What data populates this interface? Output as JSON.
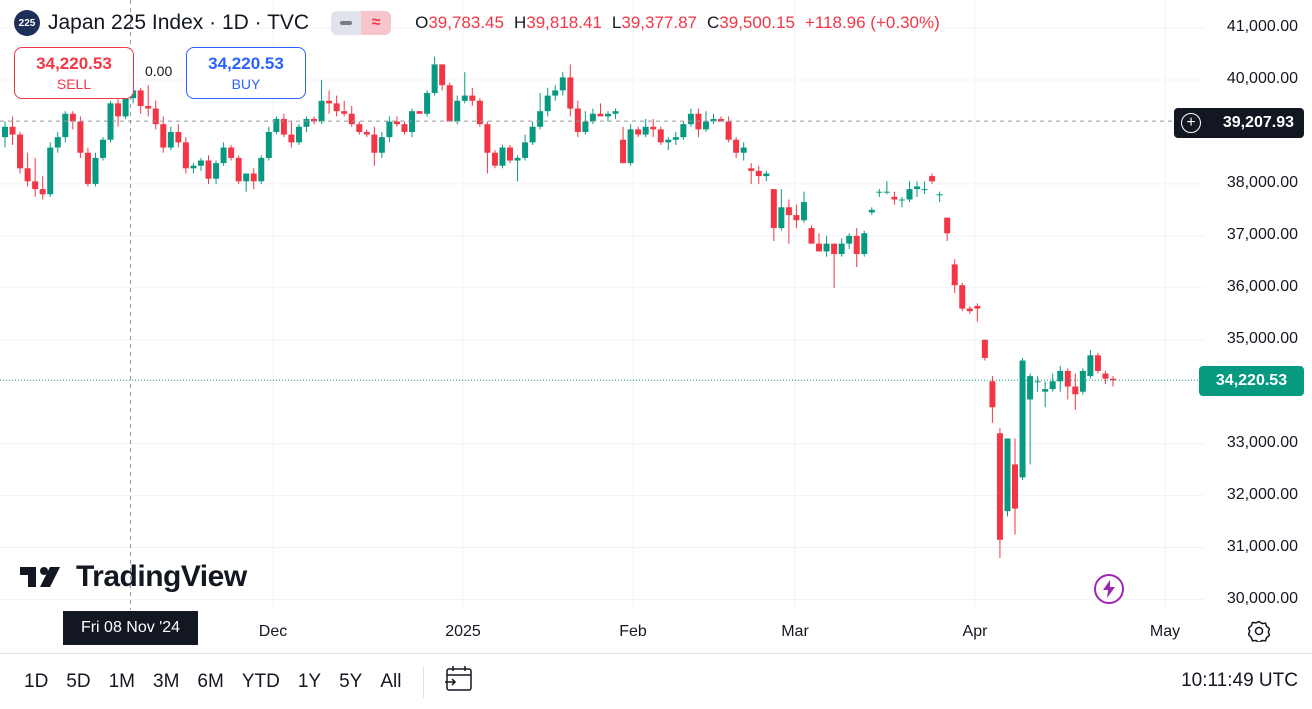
{
  "header": {
    "symbol_badge": "225",
    "title": "Japan 225 Index · 1D · TVC",
    "ohlc": {
      "open_label": "O",
      "open": "39,783.45",
      "high_label": "H",
      "high": "39,818.41",
      "low_label": "L",
      "low": "39,377.87",
      "close_label": "C",
      "close": "39,500.15",
      "change": "+118.96 (+0.30%)"
    },
    "toggle_icon_right": "≈"
  },
  "trade": {
    "sell_price": "34,220.53",
    "sell_label": "SELL",
    "spread": "0.00",
    "buy_price": "34,220.53",
    "buy_label": "BUY"
  },
  "brand": "TradingView",
  "price_axis": {
    "ticks": [
      "41,000.00",
      "40,000.00",
      "38,000.00",
      "37,000.00",
      "36,000.00",
      "35,000.00",
      "33,000.00",
      "32,000.00",
      "31,000.00",
      "30,000.00"
    ],
    "crosshair_price": "39,207.93",
    "last_price": "34,220.53"
  },
  "time_axis": {
    "ticks": [
      "Dec",
      "2025",
      "Feb",
      "Mar",
      "Apr",
      "May"
    ],
    "crosshair_date": "Fri 08 Nov '24"
  },
  "toolbar": {
    "timeframes": [
      "1D",
      "5D",
      "1M",
      "3M",
      "6M",
      "YTD",
      "1Y",
      "5Y",
      "All"
    ],
    "clock": "10:11:49 UTC"
  },
  "colors": {
    "up": "#089981",
    "down": "#f23645",
    "accent_buy": "#2962ff",
    "crosshair": "#131722"
  },
  "chart_data": {
    "type": "candlestick",
    "symbol": "Japan 225 Index",
    "interval": "1D",
    "ylim": [
      30000,
      41000
    ],
    "x_ticks": [
      "Dec",
      "2025",
      "Feb",
      "Mar",
      "Apr",
      "May"
    ],
    "crosshair": {
      "date": "Fri 08 Nov '24",
      "price": 39207.93
    },
    "last_price": 34220.53,
    "candles": [
      [
        38900,
        39200,
        38700,
        39100
      ],
      [
        39100,
        39300,
        38750,
        38950
      ],
      [
        38950,
        39000,
        38200,
        38300
      ],
      [
        38300,
        38600,
        37950,
        38050
      ],
      [
        38050,
        38500,
        37750,
        37900
      ],
      [
        37900,
        38150,
        37700,
        37800
      ],
      [
        37800,
        38800,
        37750,
        38700
      ],
      [
        38700,
        39000,
        38600,
        38900
      ],
      [
        38900,
        39400,
        38800,
        39350
      ],
      [
        39350,
        39400,
        39050,
        39200
      ],
      [
        39200,
        39300,
        38500,
        38600
      ],
      [
        38600,
        38700,
        37950,
        38000
      ],
      [
        38000,
        38600,
        37950,
        38500
      ],
      [
        38500,
        38900,
        38450,
        38850
      ],
      [
        38850,
        39600,
        38800,
        39550
      ],
      [
        39550,
        39800,
        39100,
        39300
      ],
      [
        39300,
        39700,
        39250,
        39650
      ],
      [
        39650,
        39950,
        39550,
        39800
      ],
      [
        39800,
        39850,
        39350,
        39500
      ],
      [
        39500,
        39900,
        39300,
        39450
      ],
      [
        39450,
        39600,
        39050,
        39150
      ],
      [
        39150,
        39300,
        38600,
        38700
      ],
      [
        38700,
        39100,
        38650,
        39000
      ],
      [
        39000,
        39150,
        38700,
        38800
      ],
      [
        38800,
        38900,
        38200,
        38300
      ],
      [
        38300,
        38400,
        38200,
        38350
      ],
      [
        38350,
        38500,
        38250,
        38450
      ],
      [
        38450,
        38550,
        38000,
        38100
      ],
      [
        38100,
        38450,
        38000,
        38400
      ],
      [
        38400,
        38800,
        38350,
        38700
      ],
      [
        38700,
        38750,
        38450,
        38500
      ],
      [
        38500,
        38550,
        38000,
        38050
      ],
      [
        38050,
        38200,
        37850,
        38200
      ],
      [
        38200,
        38300,
        37900,
        38050
      ],
      [
        38050,
        38550,
        38000,
        38500
      ],
      [
        38500,
        39100,
        38450,
        39000
      ],
      [
        39000,
        39300,
        38950,
        39250
      ],
      [
        39250,
        39350,
        38900,
        38950
      ],
      [
        38950,
        39200,
        38700,
        38800
      ],
      [
        38800,
        39150,
        38750,
        39100
      ],
      [
        39100,
        39300,
        39000,
        39250
      ],
      [
        39250,
        39300,
        39150,
        39200
      ],
      [
        39200,
        40000,
        39150,
        39600
      ],
      [
        39600,
        39800,
        39350,
        39550
      ],
      [
        39550,
        39700,
        39300,
        39400
      ],
      [
        39400,
        39600,
        39300,
        39350
      ],
      [
        39350,
        39500,
        39100,
        39150
      ],
      [
        39150,
        39200,
        38950,
        39000
      ],
      [
        39000,
        39050,
        38900,
        38950
      ],
      [
        38950,
        39100,
        38350,
        38600
      ],
      [
        38600,
        39000,
        38500,
        38900
      ],
      [
        38900,
        39300,
        38800,
        39200
      ],
      [
        39200,
        39300,
        39100,
        39150
      ],
      [
        39150,
        39200,
        38950,
        39000
      ],
      [
        39000,
        39450,
        38900,
        39400
      ],
      [
        39400,
        39400,
        39350,
        39350
      ],
      [
        39350,
        39800,
        39300,
        39750
      ],
      [
        39750,
        40450,
        39700,
        40300
      ],
      [
        40300,
        40300,
        39800,
        39900
      ],
      [
        39900,
        39950,
        39200,
        39200
      ],
      [
        39200,
        39700,
        39150,
        39600
      ],
      [
        39600,
        40150,
        39550,
        39700
      ],
      [
        39700,
        39850,
        39500,
        39600
      ],
      [
        39600,
        39650,
        39100,
        39150
      ],
      [
        39150,
        39200,
        38200,
        38600
      ],
      [
        38600,
        38650,
        38300,
        38350
      ],
      [
        38350,
        38750,
        38300,
        38700
      ],
      [
        38700,
        38750,
        38400,
        38450
      ],
      [
        38450,
        38550,
        38050,
        38500
      ],
      [
        38500,
        38950,
        38450,
        38800
      ],
      [
        38800,
        39200,
        38750,
        39100
      ],
      [
        39100,
        39750,
        39050,
        39400
      ],
      [
        39400,
        39850,
        39300,
        39700
      ],
      [
        39700,
        39900,
        39600,
        39800
      ],
      [
        39800,
        40150,
        39700,
        40050
      ],
      [
        40050,
        40300,
        39300,
        39450
      ],
      [
        39450,
        39600,
        38900,
        39000
      ],
      [
        39000,
        39400,
        38950,
        39200
      ],
      [
        39200,
        39450,
        39150,
        39350
      ],
      [
        39350,
        39550,
        39300,
        39300
      ],
      [
        39300,
        39400,
        39200,
        39350
      ],
      [
        39350,
        39450,
        39250,
        39400
      ],
      [
        38850,
        39100,
        38400,
        38400
      ],
      [
        38400,
        39150,
        38350,
        39050
      ],
      [
        39050,
        39100,
        38900,
        38950
      ],
      [
        38950,
        39250,
        38900,
        39100
      ],
      [
        39100,
        39250,
        38900,
        39050
      ],
      [
        39050,
        39100,
        38750,
        38800
      ],
      [
        38800,
        38900,
        38650,
        38850
      ],
      [
        38850,
        39000,
        38750,
        38900
      ],
      [
        38900,
        39200,
        38850,
        39150
      ],
      [
        39150,
        39450,
        39100,
        39350
      ],
      [
        39350,
        39450,
        38900,
        39050
      ],
      [
        39050,
        39400,
        39000,
        39200
      ],
      [
        39200,
        39350,
        39150,
        39250
      ],
      [
        39250,
        39300,
        39200,
        39200
      ],
      [
        39200,
        39300,
        38800,
        38850
      ],
      [
        38850,
        38900,
        38500,
        38600
      ],
      [
        38600,
        38800,
        38450,
        38700
      ],
      [
        38300,
        38400,
        38000,
        38250
      ],
      [
        38250,
        38350,
        38000,
        38150
      ],
      [
        38150,
        38250,
        38050,
        38200
      ],
      [
        37900,
        37900,
        36900,
        37150
      ],
      [
        37150,
        37900,
        37100,
        37550
      ],
      [
        37550,
        37700,
        36850,
        37400
      ],
      [
        37400,
        37600,
        37150,
        37300
      ],
      [
        37300,
        37850,
        37250,
        37650
      ],
      [
        37150,
        37200,
        36850,
        36850
      ],
      [
        36850,
        37050,
        36700,
        36700
      ],
      [
        36700,
        37000,
        36600,
        36850
      ],
      [
        36850,
        36850,
        36000,
        36650
      ],
      [
        36650,
        36950,
        36600,
        36850
      ],
      [
        36850,
        37050,
        36750,
        37000
      ],
      [
        37000,
        37150,
        36400,
        36650
      ],
      [
        36650,
        37100,
        36600,
        37050
      ],
      [
        37450,
        37550,
        37400,
        37500
      ],
      [
        37850,
        37900,
        37750,
        37850
      ],
      [
        37850,
        38050,
        37800,
        37850
      ],
      [
        37750,
        37850,
        37600,
        37700
      ],
      [
        37700,
        37750,
        37550,
        37700
      ],
      [
        37700,
        38050,
        37650,
        37900
      ],
      [
        37900,
        38050,
        37750,
        37950
      ],
      [
        37900,
        38050,
        37800,
        37900
      ],
      [
        38150,
        38200,
        38000,
        38050
      ],
      [
        37800,
        37850,
        37650,
        37800
      ],
      [
        37350,
        37350,
        36900,
        37050
      ],
      [
        36450,
        36550,
        35900,
        36050
      ],
      [
        36050,
        36100,
        35550,
        35600
      ],
      [
        35600,
        35650,
        35500,
        35550
      ],
      [
        35650,
        35700,
        35350,
        35600
      ],
      [
        35000,
        35000,
        34600,
        34650
      ],
      [
        34200,
        34300,
        33400,
        33700
      ],
      [
        33200,
        33300,
        30800,
        31150
      ],
      [
        31700,
        33100,
        31600,
        33100
      ],
      [
        32600,
        33100,
        31250,
        31750
      ],
      [
        32350,
        34650,
        32300,
        34600
      ],
      [
        33850,
        34350,
        32600,
        34300
      ],
      [
        34200,
        34300,
        34000,
        34200
      ],
      [
        34000,
        34200,
        33700,
        34050
      ],
      [
        34050,
        34350,
        34000,
        34200
      ],
      [
        34200,
        34500,
        34000,
        34400
      ],
      [
        34400,
        34450,
        33850,
        34100
      ],
      [
        34100,
        34350,
        33650,
        33950
      ],
      [
        34000,
        34450,
        33950,
        34400
      ],
      [
        34300,
        34800,
        34250,
        34700
      ],
      [
        34700,
        34750,
        34350,
        34400
      ],
      [
        34350,
        34400,
        34150,
        34250
      ],
      [
        34250,
        34300,
        34100,
        34220
      ]
    ]
  }
}
